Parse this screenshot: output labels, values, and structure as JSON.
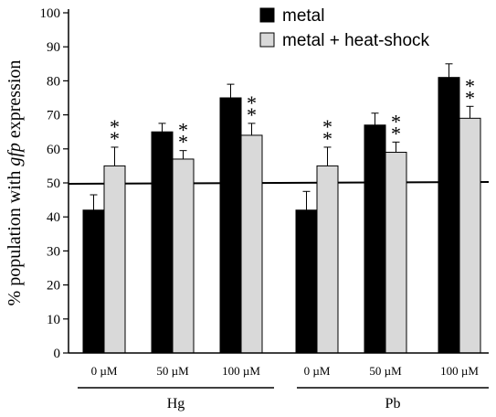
{
  "chart_data": {
    "type": "bar",
    "categories": [
      "0 µM",
      "50 µM",
      "100 µM",
      "0 µM",
      "50 µM",
      "100 µM"
    ],
    "groups": [
      {
        "label": "Hg",
        "categories": [
          0,
          1,
          2
        ]
      },
      {
        "label": "Pb",
        "categories": [
          3,
          4,
          5
        ]
      }
    ],
    "series": [
      {
        "name": "metal",
        "color": "#000000",
        "values": [
          42,
          65,
          75,
          42,
          67,
          81
        ],
        "errors": [
          4.5,
          2.5,
          4,
          5.5,
          3.5,
          4
        ]
      },
      {
        "name": "metal + heat-shock",
        "color": "#d9d9d9",
        "values": [
          55,
          57,
          64,
          55,
          59,
          69
        ],
        "errors": [
          5.5,
          2.5,
          3.5,
          5.5,
          3,
          3.5
        ]
      }
    ],
    "significance": {
      "series": 1,
      "marker": "**",
      "categories": [
        0,
        1,
        2,
        3,
        4,
        5
      ]
    },
    "reference_line": 50,
    "ylabel_prefix": "% population with ",
    "ylabel_italic": "gfp",
    "ylabel_suffix": " expression",
    "yticks": [
      0,
      10,
      20,
      30,
      40,
      50,
      60,
      70,
      80,
      90,
      100
    ],
    "ylim": [
      0,
      100
    ],
    "legend_position": "top-right"
  }
}
